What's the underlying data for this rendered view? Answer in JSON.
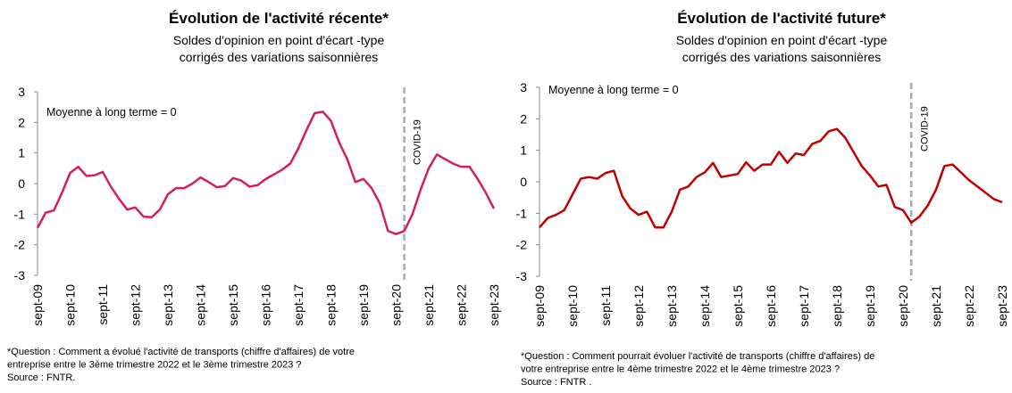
{
  "chart_data": [
    {
      "type": "line",
      "title": "Évolution de l'activité récente*",
      "subtitle": [
        "Soldes d'opinion en point d'écart -type",
        "corrigés des variations saisonnières"
      ],
      "annotation": "Moyenne à long terme = 0",
      "marker": {
        "text": "COVID-19",
        "x": 45
      },
      "categories": [
        "sept-09",
        null,
        null,
        null,
        "sept-10",
        null,
        null,
        null,
        "sept-11",
        null,
        null,
        null,
        "sept-12",
        null,
        null,
        null,
        "sept-13",
        null,
        null,
        null,
        "sept-14",
        null,
        null,
        null,
        "sept-15",
        null,
        null,
        null,
        "sept-16",
        null,
        null,
        null,
        "sept-17",
        null,
        null,
        null,
        "sept-18",
        null,
        null,
        null,
        "sept-19",
        null,
        null,
        null,
        "sept-20",
        null,
        null,
        null,
        "sept-21",
        null,
        null,
        null,
        "sept-22",
        null,
        null,
        null,
        "sept-23"
      ],
      "values": [
        -1.45,
        -0.95,
        -0.88,
        -0.3,
        0.35,
        0.55,
        0.25,
        0.27,
        0.38,
        -0.1,
        -0.5,
        -0.85,
        -0.78,
        -1.08,
        -1.1,
        -0.85,
        -0.35,
        -0.15,
        -0.15,
        0.0,
        0.2,
        0.05,
        -0.12,
        -0.08,
        0.18,
        0.1,
        -0.1,
        -0.05,
        0.15,
        0.3,
        0.45,
        0.65,
        1.15,
        1.75,
        2.3,
        2.35,
        2.05,
        1.35,
        0.8,
        0.05,
        0.15,
        -0.15,
        -0.65,
        -1.55,
        -1.65,
        -1.55,
        -1.0,
        -0.2,
        0.5,
        0.95,
        0.8,
        0.65,
        0.55,
        0.55,
        0.15,
        -0.3,
        -0.82
      ],
      "color": "#d41f5c",
      "ylim": [
        -3,
        3
      ],
      "yticks": [
        -3,
        -2,
        -1,
        0,
        1,
        2,
        3
      ],
      "note": [
        "*Question  : Comment a évolué l'activité de transports (chiffre d'affaires) de votre",
        "entreprise entre le 3ème trimestre 2022 et le 3ème trimestre 2023 ?",
        "Source : FNTR."
      ]
    },
    {
      "type": "line",
      "title": "Évolution de l'activité future*",
      "subtitle": [
        "Soldes d'opinion en point d'écart -type",
        "corrigés des variations saisonnières"
      ],
      "annotation": "Moyenne à  long terme = 0",
      "marker": {
        "text": "COVID-19",
        "x": 45
      },
      "categories": [
        "sept-09",
        null,
        null,
        null,
        "sept-10",
        null,
        null,
        null,
        "sept-11",
        null,
        null,
        null,
        "sept-12",
        null,
        null,
        null,
        "sept-13",
        null,
        null,
        null,
        "sept-14",
        null,
        null,
        null,
        "sept-15",
        null,
        null,
        null,
        "sept-16",
        null,
        null,
        null,
        "sept-17",
        null,
        null,
        null,
        "sept-18",
        null,
        null,
        null,
        "sept-19",
        null,
        null,
        null,
        "sept-20",
        null,
        null,
        null,
        "sept-21",
        null,
        null,
        null,
        "sept-22",
        null,
        null,
        null,
        "sept-23"
      ],
      "values": [
        -1.45,
        -1.15,
        -1.05,
        -0.9,
        -0.4,
        0.1,
        0.15,
        0.1,
        0.28,
        0.35,
        -0.45,
        -0.85,
        -1.05,
        -0.95,
        -1.45,
        -1.45,
        -0.95,
        -0.25,
        -0.15,
        0.15,
        0.3,
        0.6,
        0.15,
        0.2,
        0.25,
        0.62,
        0.35,
        0.55,
        0.55,
        0.95,
        0.6,
        0.9,
        0.85,
        1.2,
        1.3,
        1.6,
        1.68,
        1.4,
        0.95,
        0.5,
        0.2,
        -0.15,
        -0.1,
        -0.8,
        -0.9,
        -1.3,
        -1.1,
        -0.75,
        -0.25,
        0.5,
        0.55,
        0.3,
        0.05,
        -0.15,
        -0.35,
        -0.55,
        -0.65
      ],
      "color": "#c00000",
      "ylim": [
        -3,
        3
      ],
      "yticks": [
        -3,
        -2,
        -1,
        0,
        1,
        2,
        3
      ],
      "note": [
        "*Question  : Comment pourrait évoluer l'activité de transports (chiffre d'affaires) de",
        "votre entreprise entre le 4ème trimestre 2022 et le 4ème trimestre 2023 ?",
        "Source : FNTR ."
      ]
    }
  ]
}
